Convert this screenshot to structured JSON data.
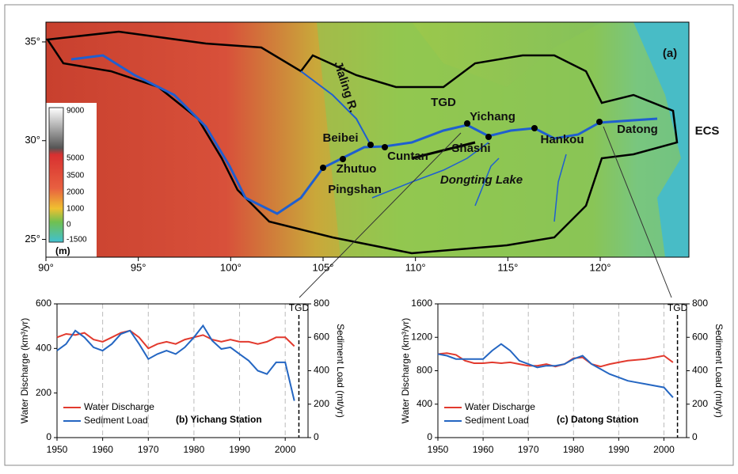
{
  "map": {
    "panel_label": "(a)",
    "xlim": [
      90,
      124.8
    ],
    "ylim": [
      24.1,
      36
    ],
    "xticks": [
      {
        "value": 90,
        "label": "90°"
      },
      {
        "value": 95,
        "label": "95°"
      },
      {
        "value": 100,
        "label": "100°"
      },
      {
        "value": 105,
        "label": "105°"
      },
      {
        "value": 110,
        "label": "110°"
      },
      {
        "value": 115,
        "label": "115°"
      },
      {
        "value": 120,
        "label": "120°"
      }
    ],
    "yticks": [
      {
        "value": 25,
        "label": "25°"
      },
      {
        "value": 30,
        "label": "30°"
      },
      {
        "value": 35,
        "label": "35°"
      }
    ],
    "places": [
      "Jialing R.",
      "TGD",
      "Yichang",
      "Beibei",
      "Cuntan",
      "Shashi",
      "Hankou",
      "Datong",
      "ECS",
      "Zhutuo",
      "Pingshan",
      "Dongting Lake"
    ],
    "elevation_legend": {
      "ticks": [
        9000,
        5000,
        3500,
        2000,
        1000,
        0,
        -1500
      ],
      "unit": "(m)"
    }
  },
  "chart_data": [
    {
      "type": "line",
      "title": "(b) Yichang Station",
      "x": [
        1950,
        1952,
        1954,
        1956,
        1958,
        1960,
        1962,
        1964,
        1966,
        1968,
        1970,
        1972,
        1974,
        1976,
        1978,
        1980,
        1982,
        1984,
        1986,
        1988,
        1990,
        1992,
        1994,
        1996,
        1998,
        2000,
        2002
      ],
      "series": [
        {
          "name": "Water Discharge",
          "color": "#e23a2e",
          "values": [
            450,
            465,
            460,
            470,
            440,
            430,
            450,
            470,
            480,
            450,
            400,
            420,
            430,
            420,
            440,
            450,
            460,
            440,
            430,
            440,
            430,
            430,
            420,
            430,
            450,
            450,
            410
          ]
        },
        {
          "name": "Sediment Load",
          "color": "#2466c2",
          "axis": "y2",
          "values": [
            520,
            560,
            640,
            600,
            540,
            520,
            560,
            620,
            640,
            560,
            470,
            500,
            520,
            500,
            540,
            600,
            670,
            580,
            530,
            540,
            500,
            460,
            400,
            380,
            450,
            450,
            220
          ]
        }
      ],
      "xlim": [
        1950,
        2005
      ],
      "xticks": [
        1950,
        1960,
        1970,
        1980,
        1990,
        2000
      ],
      "ylim": [
        0,
        600
      ],
      "yticks": [
        0,
        200,
        400,
        600
      ],
      "y2lim": [
        0,
        800
      ],
      "y2ticks": [
        0,
        200,
        400,
        600,
        800
      ],
      "ylabel": "Water Discharge (km³/yr)",
      "y2label": "Sediment Load (mt/yr)",
      "annotation": {
        "text": "TGD",
        "x": 2003
      },
      "grid": true
    },
    {
      "type": "line",
      "title": "(c) Datong Station",
      "x": [
        1950,
        1952,
        1954,
        1956,
        1958,
        1960,
        1962,
        1964,
        1966,
        1968,
        1970,
        1972,
        1974,
        1976,
        1978,
        1980,
        1982,
        1984,
        1986,
        1988,
        1990,
        1992,
        1994,
        1996,
        1998,
        2000,
        2002
      ],
      "series": [
        {
          "name": "Water Discharge",
          "color": "#e23a2e",
          "values": [
            1000,
            1010,
            990,
            920,
            890,
            890,
            900,
            890,
            900,
            880,
            860,
            860,
            880,
            850,
            880,
            950,
            960,
            880,
            850,
            880,
            900,
            920,
            930,
            940,
            960,
            980,
            900
          ]
        },
        {
          "name": "Sediment Load",
          "color": "#2466c2",
          "axis": "y2",
          "values": [
            500,
            490,
            470,
            470,
            470,
            470,
            520,
            560,
            520,
            460,
            440,
            420,
            430,
            430,
            440,
            470,
            490,
            440,
            410,
            380,
            360,
            340,
            330,
            320,
            310,
            300,
            240
          ]
        }
      ],
      "xlim": [
        1950,
        2005
      ],
      "xticks": [
        1950,
        1960,
        1970,
        1980,
        1990,
        2000
      ],
      "ylim": [
        0,
        1600
      ],
      "yticks": [
        0,
        400,
        800,
        1200,
        1600
      ],
      "y2lim": [
        0,
        800
      ],
      "y2ticks": [
        0,
        200,
        400,
        600,
        800
      ],
      "ylabel": "Water Discharge (km³/yr)",
      "y2label": "Sediment Load (mt/yr)",
      "annotation": {
        "text": "TGD",
        "x": 2003
      },
      "grid": true
    }
  ]
}
